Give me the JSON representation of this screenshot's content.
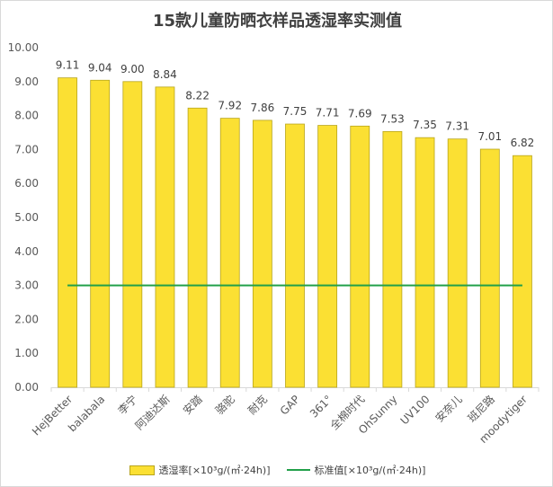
{
  "chart_data": {
    "type": "bar",
    "title": "15款儿童防晒衣样品透湿率实测值",
    "categories": [
      "HejBetter",
      "balabala",
      "李宁",
      "阿迪达斯",
      "安踏",
      "骆驼",
      "耐克",
      "GAP",
      "361°",
      "全棉时代",
      "OhSunny",
      "UV100",
      "安奈儿",
      "班尼路",
      "moodytiger"
    ],
    "series": [
      {
        "name": "透湿率[×10³g/(㎡·24h)]",
        "values": [
          9.11,
          9.04,
          9.0,
          8.84,
          8.22,
          7.92,
          7.86,
          7.75,
          7.71,
          7.69,
          7.53,
          7.35,
          7.31,
          7.01,
          6.82
        ],
        "labels": [
          "9.11",
          "9.04",
          "9.00",
          "8.84",
          "8.22",
          "7.92",
          "7.86",
          "7.75",
          "7.71",
          "7.69",
          "7.53",
          "7.35",
          "7.31",
          "7.01",
          "6.82"
        ],
        "kind": "bar"
      },
      {
        "name": "标准值[×10³g/(㎡·24h)]",
        "value": 3.0,
        "kind": "line"
      }
    ],
    "ylim": [
      0,
      10
    ],
    "yticks": [
      "0.00",
      "1.00",
      "2.00",
      "3.00",
      "4.00",
      "5.00",
      "6.00",
      "7.00",
      "8.00",
      "9.00",
      "10.00"
    ],
    "xlabel": "",
    "ylabel": "",
    "grid": false,
    "legend_position": "bottom",
    "colors": {
      "bar_fill": "#fbe033",
      "bar_stroke": "#b8a51c",
      "line": "#22a04a",
      "axis_text": "#595959",
      "label_text": "#404040"
    }
  }
}
